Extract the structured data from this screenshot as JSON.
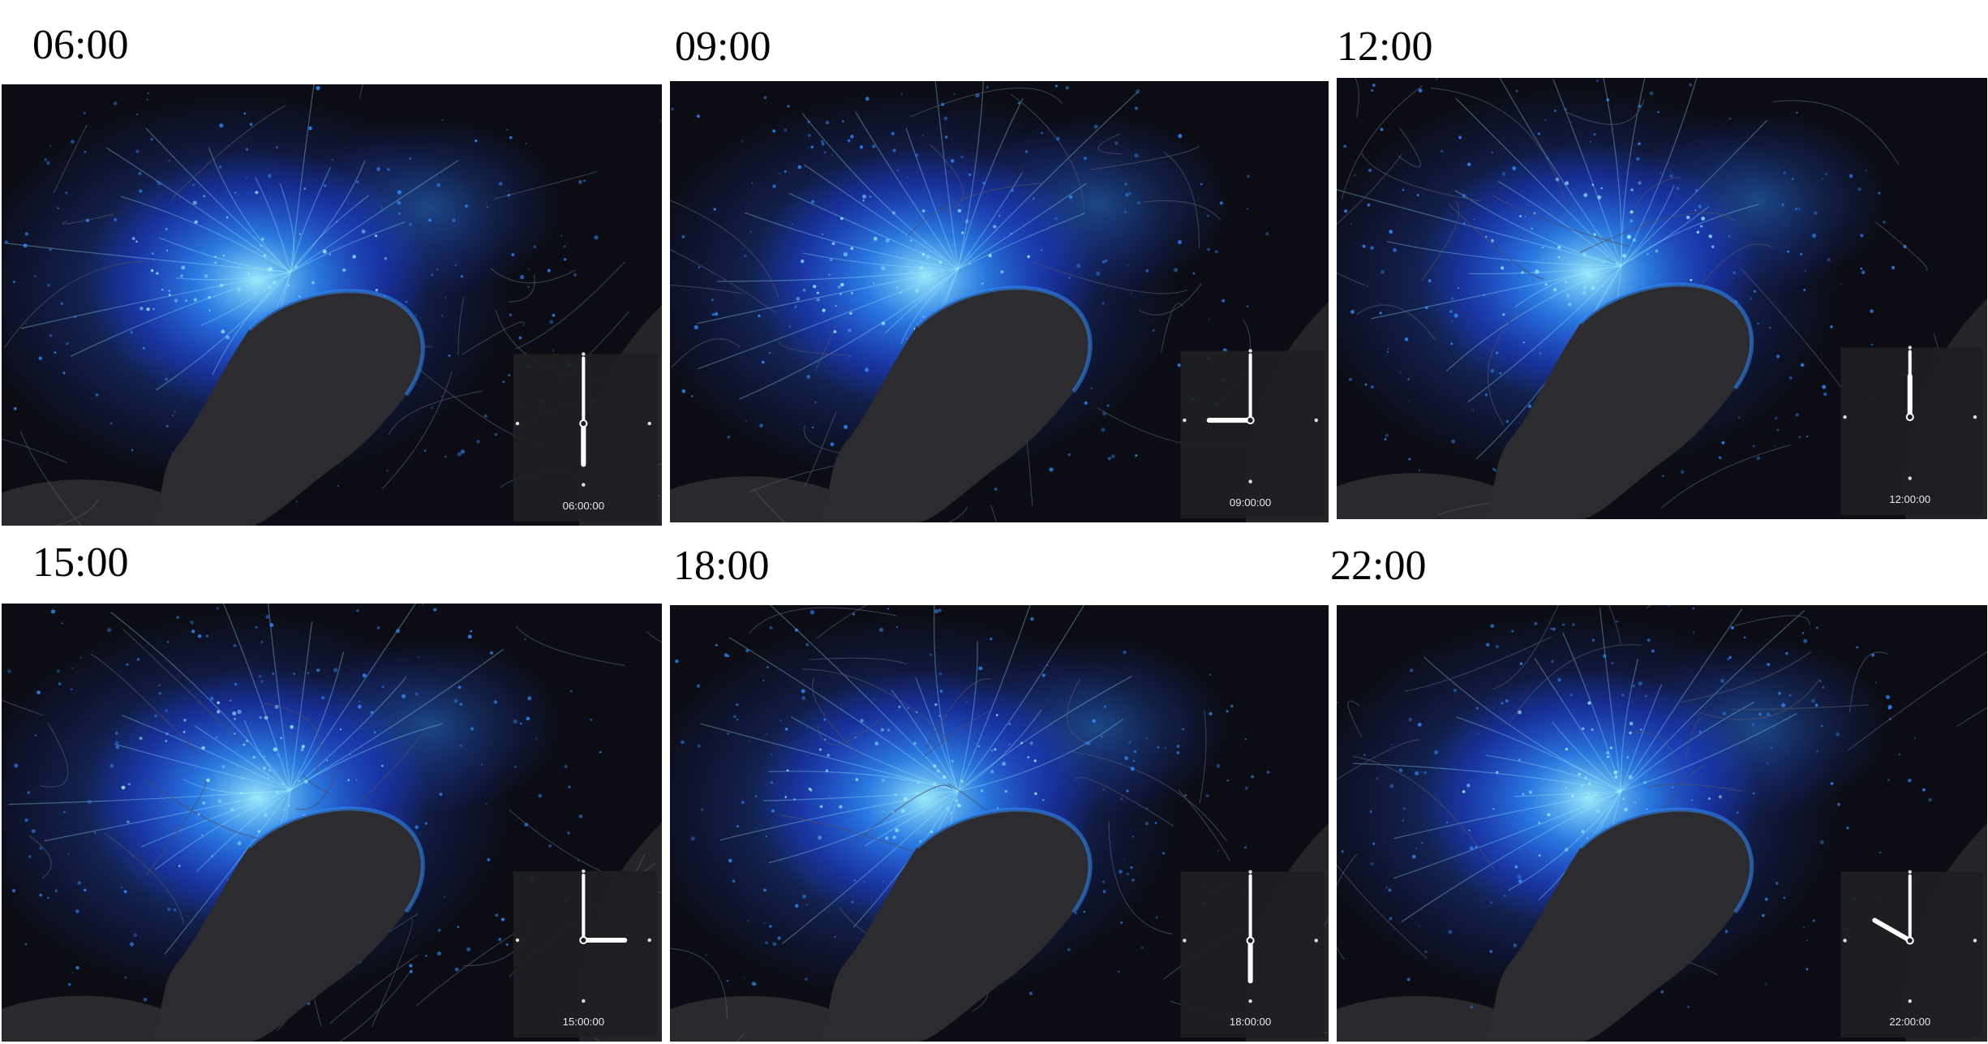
{
  "panels": [
    {
      "title": "06:00",
      "clock_label": "06:00:00",
      "hour": 6,
      "minute": 0
    },
    {
      "title": "09:00",
      "clock_label": "09:00:00",
      "hour": 9,
      "minute": 0
    },
    {
      "title": "12:00",
      "clock_label": "12:00:00",
      "hour": 12,
      "minute": 0
    },
    {
      "title": "15:00",
      "clock_label": "15:00:00",
      "hour": 15,
      "minute": 0
    },
    {
      "title": "18:00",
      "clock_label": "18:00:00",
      "hour": 18,
      "minute": 0
    },
    {
      "title": "22:00",
      "clock_label": "22:00:00",
      "hour": 22,
      "minute": 0
    }
  ],
  "colors": {
    "background": "#0c0d14",
    "bay": "#2c2c30",
    "ocean": "#2a2a2e",
    "glow_core": "#9ff0ff",
    "glow_mid": "#2f8cff",
    "glow_outer": "#1d3dff",
    "roads": "#4a4f66",
    "clock_panel": "#1f1f23",
    "clock_hand": "#ffffff"
  },
  "icons": {
    "clock": "analog-clock-icon"
  }
}
